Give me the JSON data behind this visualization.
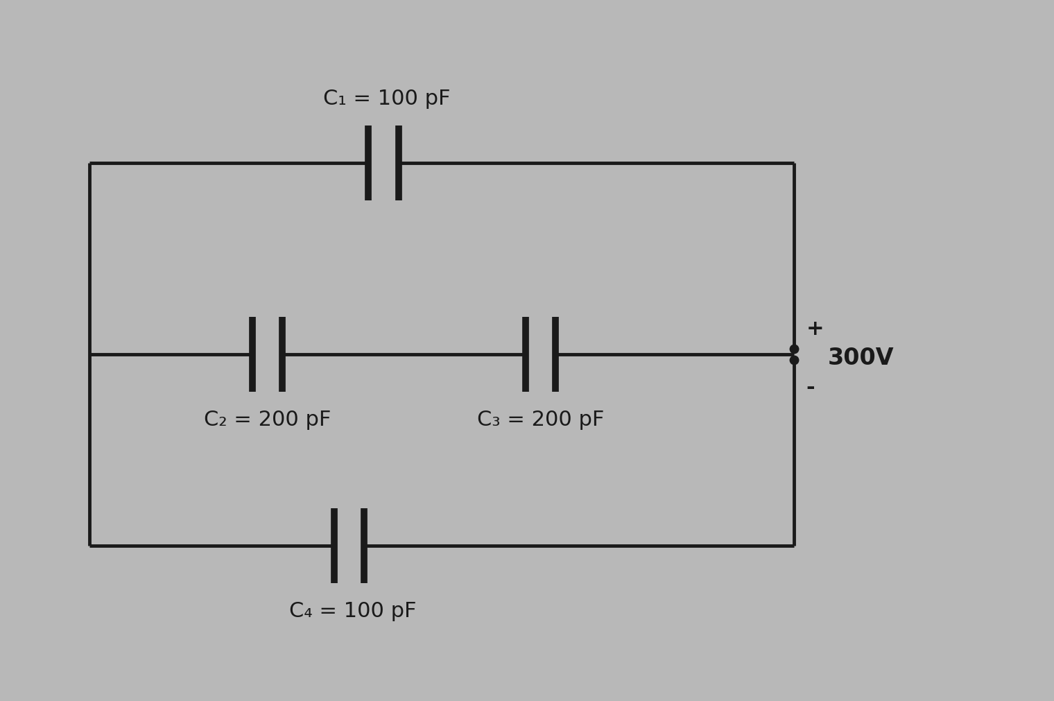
{
  "bg_color": "#b8b8b8",
  "line_color": "#1a1a1a",
  "line_width": 3.5,
  "fig_width": 15.2,
  "fig_height": 10.12,
  "capacitors": {
    "C1": {
      "label": "C₁ = 100 pF"
    },
    "C2": {
      "label": "C₂ = 200 pF"
    },
    "C3": {
      "label": "C₃ = 200 pF"
    },
    "C4": {
      "label": "C₄ = 100 pF"
    }
  },
  "supply_label": "300V",
  "supply_plus": "+",
  "supply_minus": "-",
  "font_size": 20,
  "label_font_size": 22
}
